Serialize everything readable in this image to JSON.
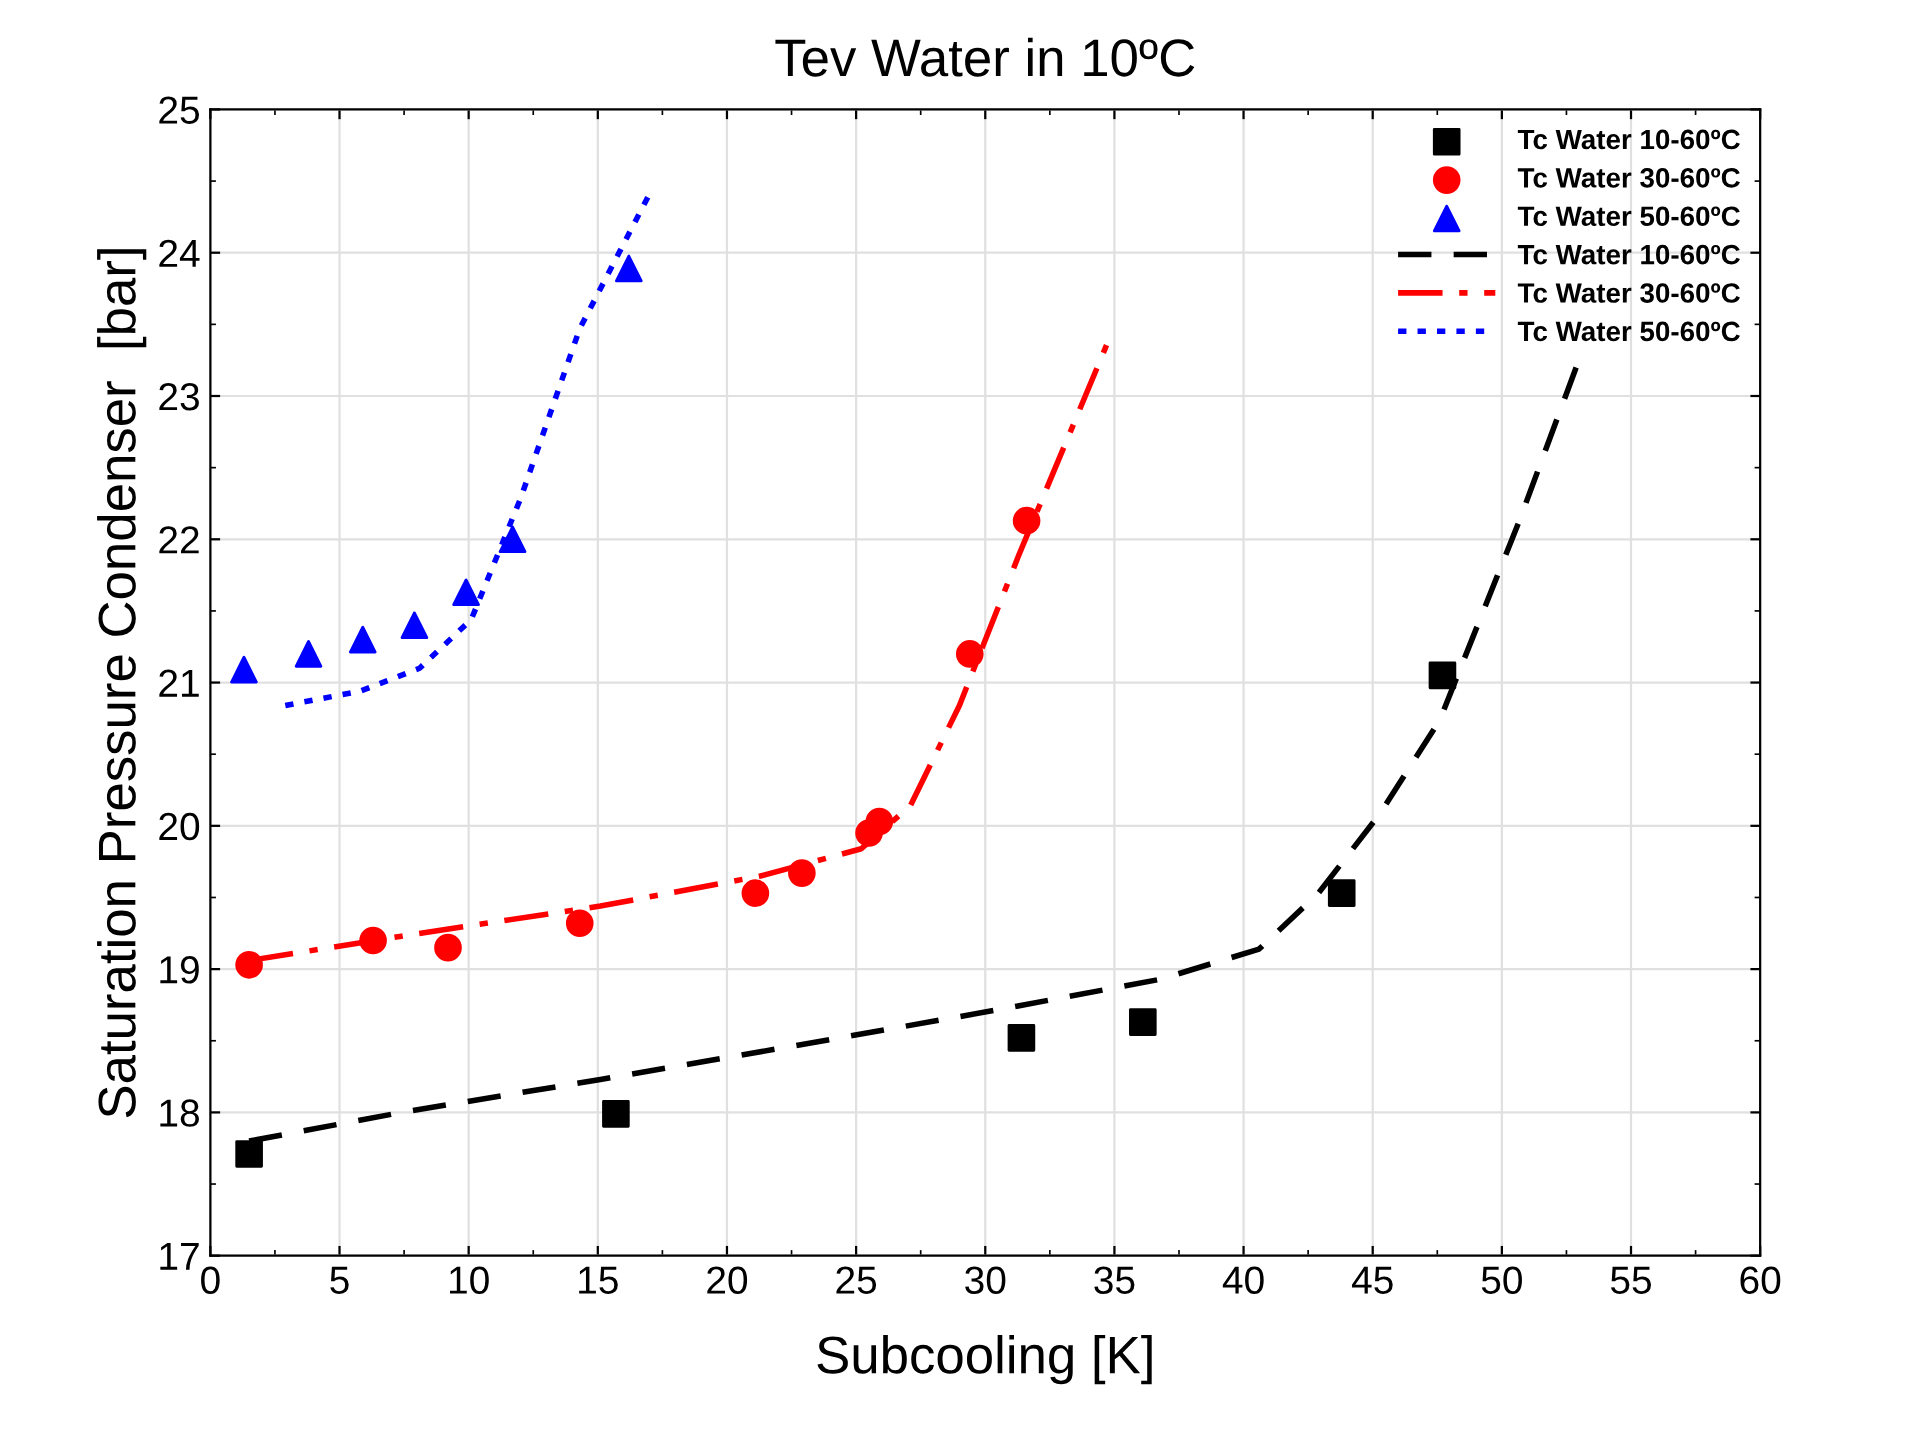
{
  "chart_data": {
    "type": "scatter",
    "title": "Tev Water in 10ºC",
    "xlabel": "Subcooling [K]",
    "ylabel": "Saturation Pressure Condenser  [bar]",
    "xlim": [
      0,
      60
    ],
    "xticks": [
      0,
      5,
      10,
      15,
      20,
      25,
      30,
      35,
      40,
      45,
      50,
      55,
      60
    ],
    "ylim": [
      17,
      25
    ],
    "yticks": [
      17,
      18,
      19,
      20,
      21,
      22,
      23,
      24,
      25
    ],
    "grid": true,
    "legend": "top right",
    "series": [
      {
        "name": "Tc Water 10-60ºC",
        "marker": "square",
        "color": "#000000",
        "x": [
          1.5,
          15.7,
          31.4,
          36.1,
          43.8,
          47.7
        ],
        "values": [
          17.71,
          17.99,
          18.52,
          18.63,
          19.53,
          21.05
        ]
      },
      {
        "name": "Tc Water 30-60ºC",
        "marker": "circle",
        "color": "#ff0000",
        "x": [
          1.5,
          6.3,
          9.2,
          14.3,
          21.1,
          22.9,
          25.5,
          25.9,
          29.4,
          31.6
        ],
        "values": [
          19.03,
          19.2,
          19.15,
          19.32,
          19.53,
          19.67,
          19.95,
          20.03,
          21.2,
          22.13
        ]
      },
      {
        "name": "Tc Water 50-60ºC",
        "marker": "triangle",
        "color": "#0000ff",
        "x": [
          1.3,
          3.8,
          5.9,
          7.9,
          9.9,
          11.7,
          16.2
        ],
        "values": [
          21.09,
          21.2,
          21.3,
          21.4,
          21.63,
          22.0,
          23.89
        ]
      },
      {
        "name": "Tc Water 10-60ºC",
        "type": "line",
        "line_style": "dashed",
        "color": "#000000",
        "x": [
          1.5,
          7.4,
          15.1,
          22.8,
          30.6,
          36.8,
          40.6,
          42.9,
          45.3,
          47.6,
          50.7,
          53.0
        ],
        "values": [
          17.8,
          18.0,
          18.23,
          18.47,
          18.72,
          18.93,
          19.14,
          19.53,
          20.09,
          20.74,
          22.14,
          23.26
        ]
      },
      {
        "name": "Tc Water 30-60ºC",
        "type": "line",
        "line_style": "dashdot",
        "color": "#ff0000",
        "x": [
          1.5,
          7.4,
          15.1,
          21.3,
          25.2,
          27.1,
          29.0,
          31.3,
          34.8
        ],
        "values": [
          19.06,
          19.23,
          19.44,
          19.65,
          19.84,
          20.14,
          20.84,
          21.89,
          23.4
        ]
      },
      {
        "name": "Tc Water 50-60ºC",
        "type": "line",
        "line_style": "dotted",
        "color": "#0000ff",
        "x": [
          2.9,
          5.8,
          8.1,
          10.1,
          12.0,
          14.3,
          17.0
        ],
        "values": [
          20.84,
          20.94,
          21.1,
          21.44,
          22.28,
          23.47,
          24.41
        ]
      }
    ]
  }
}
